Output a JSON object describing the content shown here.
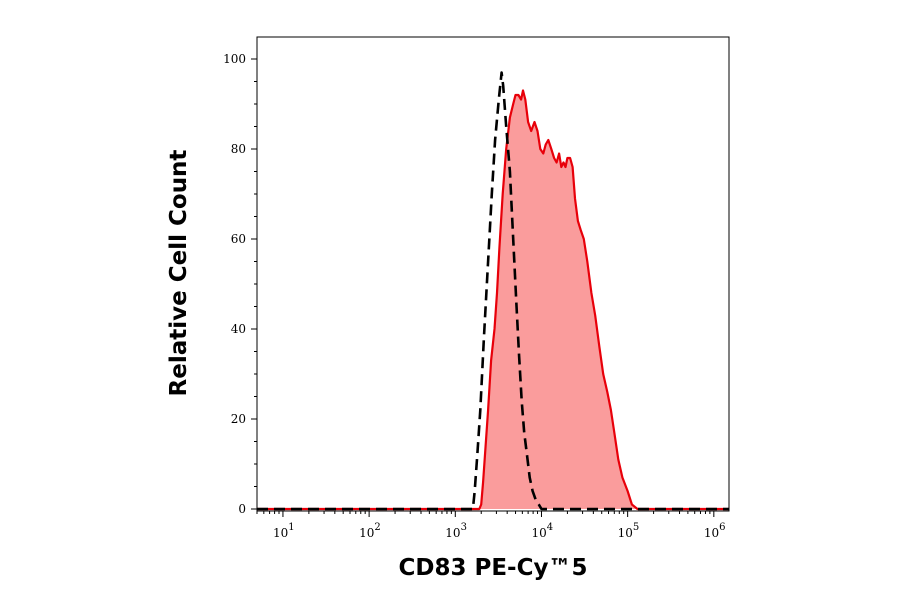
{
  "chart_data": {
    "type": "area",
    "title": "",
    "xlabel": "CD83 PE-Cy™5",
    "ylabel": "Relative Cell Count",
    "x_scale": "log",
    "xlim": [
      5,
      1500000
    ],
    "ylim": [
      0,
      100
    ],
    "x_ticks": [
      {
        "value": 10,
        "base": "10",
        "exp": "1"
      },
      {
        "value": 100,
        "base": "10",
        "exp": "2"
      },
      {
        "value": 1000,
        "base": "10",
        "exp": "3"
      },
      {
        "value": 10000,
        "base": "10",
        "exp": "4"
      },
      {
        "value": 100000,
        "base": "10",
        "exp": "5"
      },
      {
        "value": 1000000,
        "base": "10",
        "exp": "6"
      }
    ],
    "y_ticks": [
      "0",
      "20",
      "40",
      "60",
      "80",
      "100"
    ],
    "grid": false,
    "series": [
      {
        "style": "filled",
        "color": "#e8000a",
        "fill": "#fa9c9c",
        "points": [
          [
            5,
            0
          ],
          [
            1900,
            0
          ],
          [
            2000,
            1
          ],
          [
            2100,
            6
          ],
          [
            2250,
            14
          ],
          [
            2400,
            22
          ],
          [
            2600,
            33
          ],
          [
            2850,
            40
          ],
          [
            3050,
            48
          ],
          [
            3250,
            58
          ],
          [
            3550,
            70
          ],
          [
            3900,
            80
          ],
          [
            4300,
            87
          ],
          [
            4700,
            90
          ],
          [
            5000,
            92
          ],
          [
            5400,
            92
          ],
          [
            5800,
            91
          ],
          [
            6100,
            93
          ],
          [
            6500,
            91
          ],
          [
            7000,
            86
          ],
          [
            7600,
            84
          ],
          [
            8300,
            86
          ],
          [
            9000,
            84
          ],
          [
            9700,
            80
          ],
          [
            10500,
            79
          ],
          [
            11200,
            81
          ],
          [
            12000,
            82
          ],
          [
            13000,
            80
          ],
          [
            14000,
            78
          ],
          [
            15000,
            77
          ],
          [
            16000,
            79
          ],
          [
            17000,
            76
          ],
          [
            18000,
            77
          ],
          [
            19000,
            76
          ],
          [
            20000,
            78
          ],
          [
            21500,
            78
          ],
          [
            23000,
            76
          ],
          [
            24500,
            69
          ],
          [
            26500,
            64
          ],
          [
            28500,
            62
          ],
          [
            31000,
            60
          ],
          [
            34000,
            55
          ],
          [
            38000,
            48
          ],
          [
            42000,
            43
          ],
          [
            47000,
            36
          ],
          [
            52000,
            30
          ],
          [
            58000,
            26
          ],
          [
            64000,
            22
          ],
          [
            70000,
            17
          ],
          [
            78000,
            11
          ],
          [
            87000,
            7
          ],
          [
            100000,
            4
          ],
          [
            112000,
            1
          ],
          [
            130000,
            0
          ],
          [
            1500000,
            0
          ]
        ]
      },
      {
        "style": "dashed",
        "color": "#000000",
        "points": [
          [
            5,
            0
          ],
          [
            1600,
            0
          ],
          [
            1680,
            4
          ],
          [
            1800,
            12
          ],
          [
            1950,
            22
          ],
          [
            2150,
            38
          ],
          [
            2400,
            55
          ],
          [
            2650,
            70
          ],
          [
            2900,
            82
          ],
          [
            3200,
            91
          ],
          [
            3450,
            97
          ],
          [
            3600,
            94
          ],
          [
            3900,
            85
          ],
          [
            4300,
            75
          ],
          [
            4700,
            60
          ],
          [
            5100,
            46
          ],
          [
            5500,
            34
          ],
          [
            5900,
            24
          ],
          [
            6300,
            17
          ],
          [
            6800,
            12
          ],
          [
            7300,
            7
          ],
          [
            7900,
            4
          ],
          [
            8600,
            2
          ],
          [
            9300,
            1
          ],
          [
            10000,
            0
          ],
          [
            1500000,
            0
          ]
        ]
      }
    ]
  }
}
